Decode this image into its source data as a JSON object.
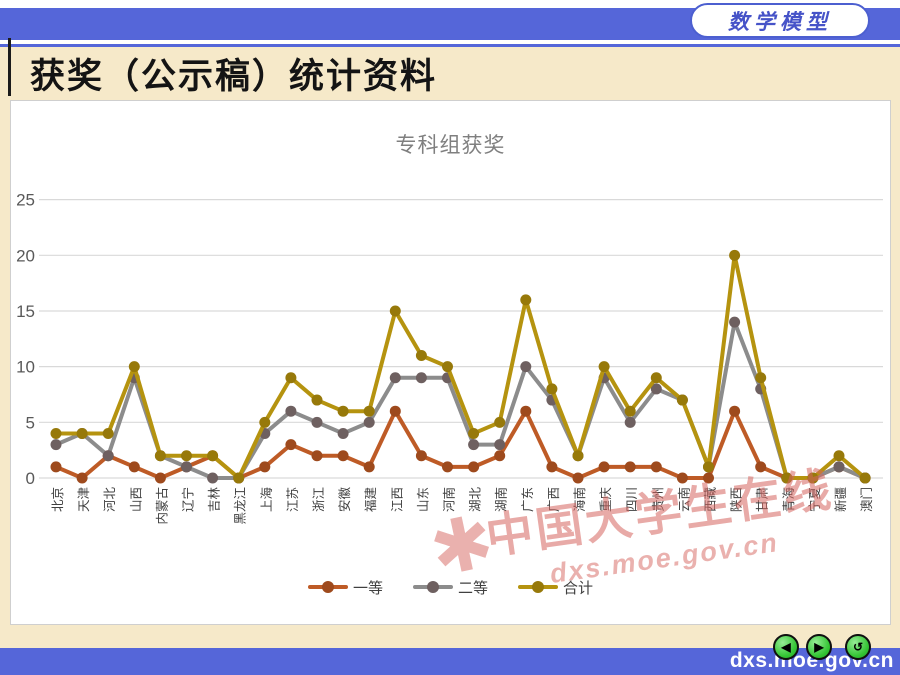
{
  "header": {
    "badge_label": "数学模型",
    "title": "获奖（公示稿）统计资料"
  },
  "chart_data": {
    "type": "line",
    "title": "专科组获奖",
    "categories": [
      "北京",
      "天津",
      "河北",
      "山西",
      "内蒙古",
      "辽宁",
      "吉林",
      "黑龙江",
      "上海",
      "江苏",
      "浙江",
      "安徽",
      "福建",
      "江西",
      "山东",
      "河南",
      "湖北",
      "湖南",
      "广东",
      "广西",
      "海南",
      "重庆",
      "四川",
      "贵州",
      "云南",
      "西藏",
      "陕西",
      "甘肃",
      "青海",
      "宁夏",
      "新疆",
      "澳门"
    ],
    "series": [
      {
        "name": "一等",
        "color": "#BE5B26",
        "marker": "#9E4A1D",
        "values": [
          1,
          0,
          2,
          1,
          0,
          1,
          2,
          0,
          1,
          3,
          2,
          2,
          1,
          6,
          2,
          1,
          1,
          2,
          6,
          1,
          0,
          1,
          1,
          1,
          0,
          0,
          6,
          1,
          0,
          0,
          1,
          0
        ]
      },
      {
        "name": "二等",
        "color": "#8C8C8C",
        "marker": "#6E6060",
        "values": [
          3,
          4,
          2,
          9,
          2,
          1,
          0,
          0,
          4,
          6,
          5,
          4,
          5,
          9,
          9,
          9,
          3,
          3,
          10,
          7,
          2,
          9,
          5,
          8,
          7,
          1,
          14,
          8,
          0,
          0,
          1,
          0
        ]
      },
      {
        "name": "合计",
        "color": "#B5930F",
        "marker": "#97790A",
        "values": [
          4,
          4,
          4,
          10,
          2,
          2,
          2,
          0,
          5,
          9,
          7,
          6,
          6,
          15,
          11,
          10,
          4,
          5,
          16,
          8,
          2,
          10,
          6,
          9,
          7,
          1,
          20,
          9,
          0,
          0,
          2,
          0
        ]
      }
    ],
    "ylim": [
      0,
      25
    ],
    "yticks": [
      0,
      5,
      10,
      15,
      20,
      25
    ],
    "xlabel": "",
    "ylabel": "",
    "grid": true,
    "legend_position": "bottom",
    "x_label_rotation": -90
  },
  "watermark": {
    "logo": "✱",
    "line1": "中国大学生在线",
    "line2": "dxs.moe.gov.cn"
  },
  "footer": {
    "url": "dxs.moe.gov.cn",
    "buttons": [
      {
        "name": "back",
        "glyph": "◀"
      },
      {
        "name": "forward",
        "glyph": "▶"
      },
      {
        "name": "return",
        "glyph": "↺"
      }
    ]
  },
  "colors": {
    "bar_blue": "#5566D9",
    "badge_blue": "#4653C8",
    "background_cream": "#F6E9C9",
    "grid_gray": "#D9D9D9",
    "ytick_gray": "#595959",
    "xtick_gray": "#3F3F3F",
    "chart_title_gray": "#7F7F7F",
    "watermark_red": "rgba(214,100,94,0.55)"
  }
}
